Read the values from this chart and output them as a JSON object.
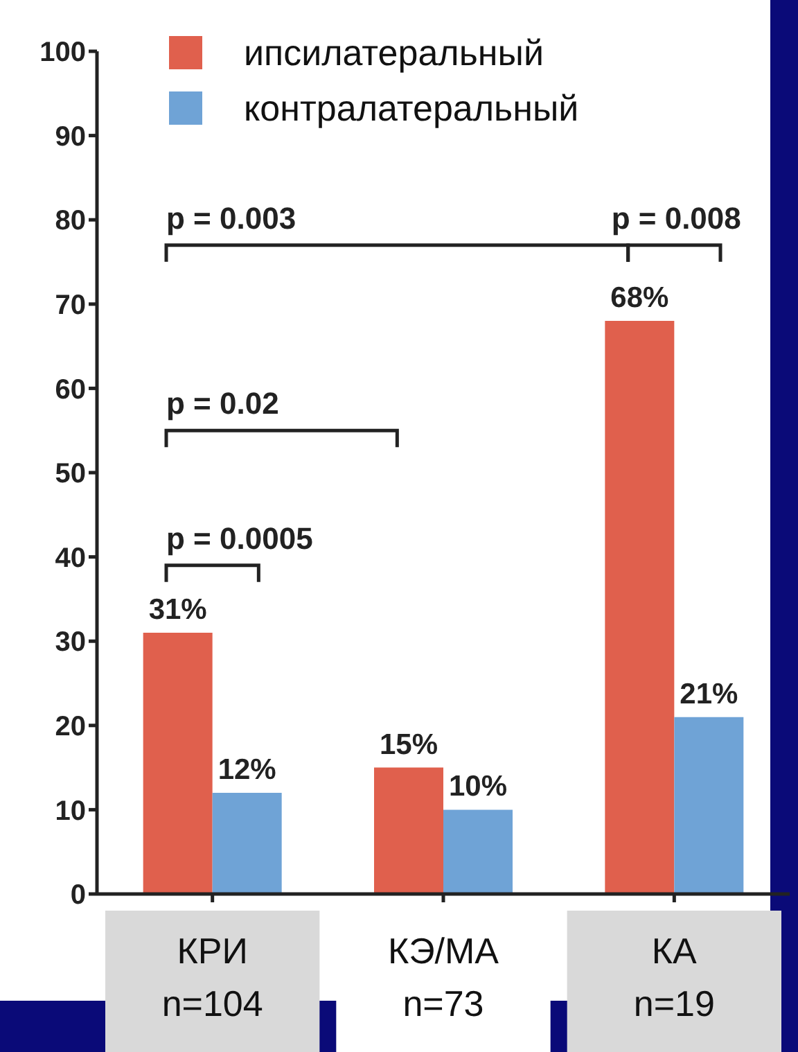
{
  "chart_data": {
    "type": "bar",
    "categories": [
      "КРИ\nn=104",
      "КЭ/МА\nn=73",
      "КА\nn=19"
    ],
    "series": [
      {
        "name": "ипсилатеральный",
        "color": "#e0604d",
        "values": [
          31,
          15,
          68
        ],
        "value_labels": [
          "31%",
          "15%",
          "68%"
        ]
      },
      {
        "name": "контралатеральный",
        "color": "#6fa3d6",
        "values": [
          12,
          10,
          21
        ],
        "value_labels": [
          "12%",
          "10%",
          "21%"
        ]
      }
    ],
    "ylim": [
      0,
      100
    ],
    "yticks": [
      0,
      10,
      20,
      30,
      40,
      50,
      60,
      70,
      80,
      90,
      100
    ],
    "grid": false,
    "legend": "top",
    "annotations": [
      "p = 0.0005",
      "p = 0.02",
      "p = 0.003",
      "p = 0.008"
    ]
  }
}
